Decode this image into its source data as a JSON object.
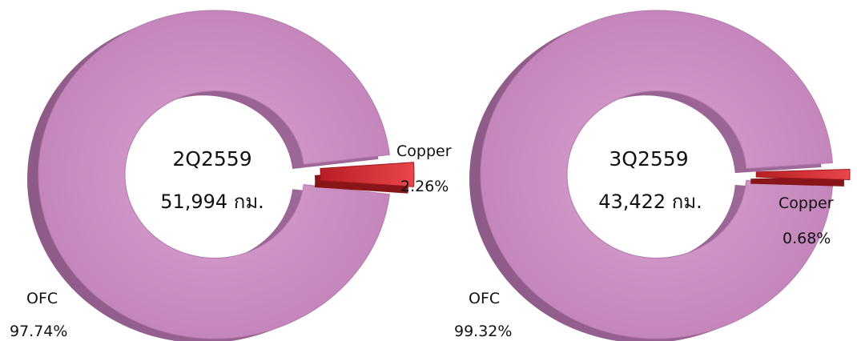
{
  "chart_data": [
    {
      "type": "pie",
      "center_title": "2Q2559",
      "center_total": "51,994 กม.",
      "slices": [
        {
          "name": "OFC",
          "value": 97.74,
          "label": "97.74%"
        },
        {
          "name": "Copper",
          "value": 2.26,
          "label": "2.26%"
        }
      ],
      "colors": {
        "OFC": "#c98bbf",
        "Copper": "#d8262c"
      }
    },
    {
      "type": "pie",
      "center_title": "3Q2559",
      "center_total": "43,422 กม.",
      "slices": [
        {
          "name": "OFC",
          "value": 99.32,
          "label": "99.32%"
        },
        {
          "name": "Copper",
          "value": 0.68,
          "label": "0.68%"
        }
      ],
      "colors": {
        "OFC": "#c98bbf",
        "Copper": "#d8262c"
      }
    }
  ]
}
